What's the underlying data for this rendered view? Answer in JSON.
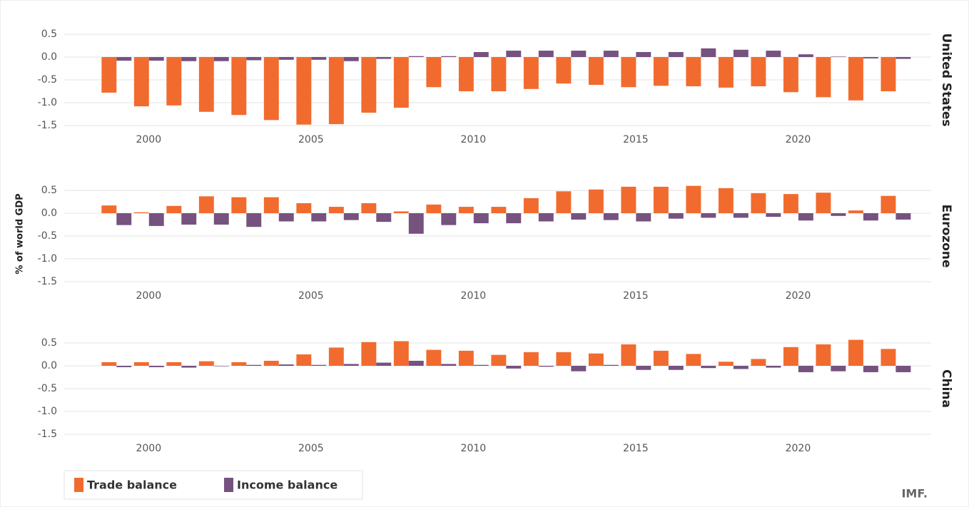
{
  "ylabel": "% of world GDP",
  "source": "IMF.",
  "chart_data": [
    {
      "type": "bar",
      "title": "United States",
      "x": [
        1999,
        2000,
        2001,
        2002,
        2003,
        2004,
        2005,
        2006,
        2007,
        2008,
        2009,
        2010,
        2011,
        2012,
        2013,
        2014,
        2015,
        2016,
        2017,
        2018,
        2019,
        2020,
        2021,
        2022,
        2023
      ],
      "series": [
        {
          "name": "Trade balance",
          "color": "#f26b2e",
          "values": [
            -0.78,
            -1.08,
            -1.06,
            -1.2,
            -1.27,
            -1.38,
            -1.48,
            -1.47,
            -1.22,
            -1.11,
            -0.66,
            -0.75,
            -0.75,
            -0.7,
            -0.58,
            -0.61,
            -0.66,
            -0.63,
            -0.64,
            -0.67,
            -0.64,
            -0.77,
            -0.88,
            -0.95,
            -0.75
          ]
        },
        {
          "name": "Income balance",
          "color": "#76527f",
          "values": [
            -0.08,
            -0.08,
            -0.09,
            -0.09,
            -0.07,
            -0.06,
            -0.06,
            -0.09,
            -0.04,
            0.02,
            0.02,
            0.11,
            0.14,
            0.14,
            0.14,
            0.14,
            0.11,
            0.11,
            0.19,
            0.16,
            0.14,
            0.06,
            0.01,
            -0.03,
            -0.04
          ]
        }
      ],
      "xlim": [
        1997.4,
        2024.1
      ],
      "xticks": [
        2000,
        2005,
        2010,
        2015,
        2020
      ],
      "ylim": [
        -1.5,
        0.5
      ],
      "yticks": [
        {
          "value": -1.5,
          "label": "-1.5"
        },
        {
          "value": -1,
          "label": "-1.0"
        },
        {
          "value": -0.5,
          "label": "-0.5"
        },
        {
          "value": 0,
          "label": "0.0"
        },
        {
          "value": 0.5,
          "label": "0.5"
        }
      ],
      "grid": true
    },
    {
      "type": "bar",
      "title": "Eurozone",
      "x": [
        1999,
        2000,
        2001,
        2002,
        2003,
        2004,
        2005,
        2006,
        2007,
        2008,
        2009,
        2010,
        2011,
        2012,
        2013,
        2014,
        2015,
        2016,
        2017,
        2018,
        2019,
        2020,
        2021,
        2022,
        2023
      ],
      "series": [
        {
          "color": "#f26b2e",
          "values": [
            0.17,
            0.02,
            0.16,
            0.37,
            0.35,
            0.35,
            0.22,
            0.14,
            0.22,
            0.04,
            0.19,
            0.14,
            0.14,
            0.33,
            0.48,
            0.52,
            0.58,
            0.58,
            0.6,
            0.55,
            0.44,
            0.42,
            0.45,
            0.06,
            0.38
          ]
        },
        {
          "color": "#76527f",
          "values": [
            -0.26,
            -0.28,
            -0.25,
            -0.25,
            -0.3,
            -0.18,
            -0.18,
            -0.15,
            -0.19,
            -0.45,
            -0.26,
            -0.22,
            -0.22,
            -0.18,
            -0.14,
            -0.15,
            -0.18,
            -0.12,
            -0.1,
            -0.1,
            -0.08,
            -0.16,
            -0.06,
            -0.16,
            -0.14
          ]
        }
      ],
      "xlim": [
        1997.4,
        2024.1
      ],
      "xticks": [
        2000,
        2005,
        2010,
        2015,
        2020
      ],
      "ylim": [
        -1.5,
        0.5
      ],
      "yticks": [
        {
          "value": -1.5,
          "label": "-1.5"
        },
        {
          "value": -1,
          "label": "-1.0"
        },
        {
          "value": -0.5,
          "label": "-0.5"
        },
        {
          "value": 0,
          "label": "0.0"
        },
        {
          "value": 0.5,
          "label": "0.5"
        }
      ],
      "grid": true
    },
    {
      "type": "bar",
      "title": "China",
      "x": [
        1999,
        2000,
        2001,
        2002,
        2003,
        2004,
        2005,
        2006,
        2007,
        2008,
        2009,
        2010,
        2011,
        2012,
        2013,
        2014,
        2015,
        2016,
        2017,
        2018,
        2019,
        2020,
        2021,
        2022,
        2023
      ],
      "series": [
        {
          "color": "#f26b2e",
          "values": [
            0.08,
            0.08,
            0.08,
            0.1,
            0.08,
            0.11,
            0.25,
            0.4,
            0.52,
            0.54,
            0.35,
            0.33,
            0.24,
            0.3,
            0.3,
            0.27,
            0.47,
            0.33,
            0.26,
            0.09,
            0.15,
            0.41,
            0.47,
            0.57,
            0.37
          ]
        },
        {
          "color": "#76527f",
          "values": [
            -0.03,
            -0.03,
            -0.04,
            -0.01,
            0.02,
            0.03,
            0.02,
            0.04,
            0.07,
            0.11,
            0.04,
            0.02,
            -0.06,
            -0.02,
            -0.12,
            0.02,
            -0.09,
            -0.09,
            -0.05,
            -0.07,
            -0.04,
            -0.14,
            -0.12,
            -0.14,
            -0.14
          ]
        }
      ],
      "xlim": [
        1997.4,
        2024.1
      ],
      "xticks": [
        2000,
        2005,
        2010,
        2015,
        2020
      ],
      "ylim": [
        -1.5,
        0.5
      ],
      "yticks": [
        {
          "value": -1.5,
          "label": "-1.5"
        },
        {
          "value": -1,
          "label": "-1.0"
        },
        {
          "value": -0.5,
          "label": "-0.5"
        },
        {
          "value": 0,
          "label": "0.0"
        },
        {
          "value": 0.5,
          "label": "0.5"
        }
      ],
      "grid": true
    }
  ]
}
